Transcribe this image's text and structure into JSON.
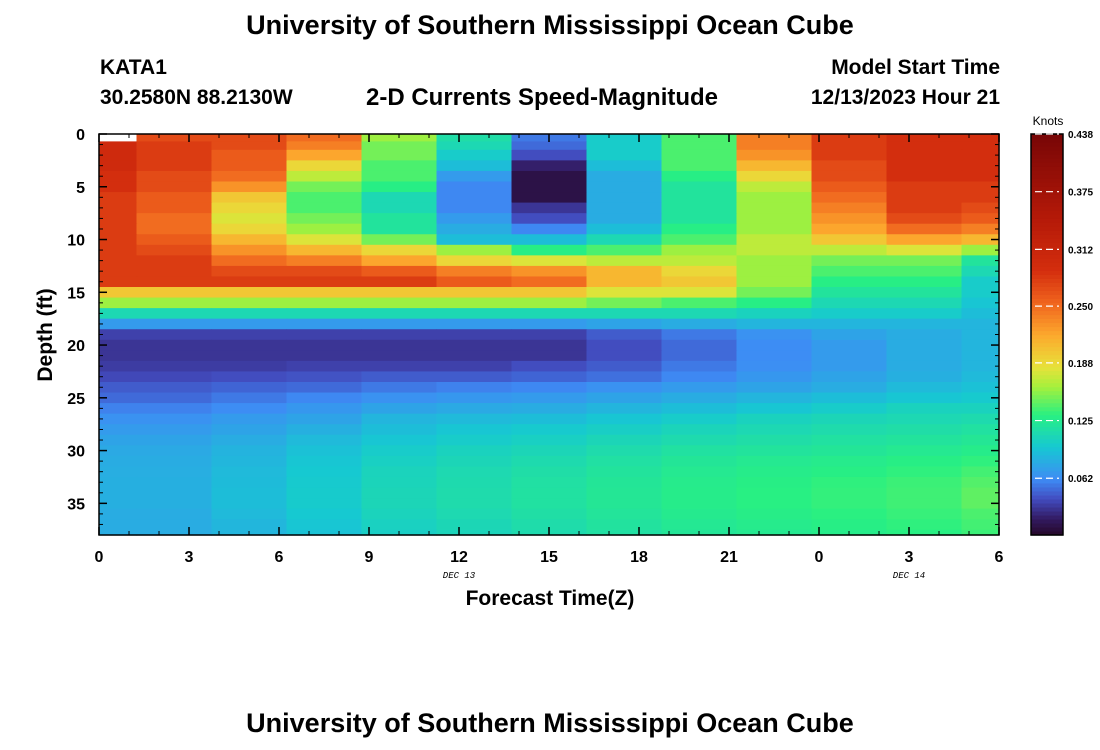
{
  "header": {
    "title": "University of Southern Mississippi Ocean Cube",
    "station_id": "KATA1",
    "station_coords": "30.2580N  88.2130W",
    "plot_title": "2-D Currents Speed-Magnitude",
    "start_label": "Model Start Time",
    "start_value": "12/13/2023 Hour 21"
  },
  "footer": {
    "title": "University of Southern Mississippi Ocean Cube"
  },
  "chart_data": {
    "type": "heatmap",
    "title": "2-D Currents Speed-Magnitude",
    "xlabel": "Forecast Time(Z)",
    "ylabel": "Depth (ft)",
    "x_tick_labels": [
      "0",
      "3",
      "6",
      "9",
      "12",
      "15",
      "18",
      "21",
      "0",
      "3",
      "6"
    ],
    "x_date_labels": [
      {
        "at_hour": 12,
        "text": "DEC 13"
      },
      {
        "at_hour": 27,
        "text": "DEC 14"
      }
    ],
    "xlim": [
      0,
      30
    ],
    "ylim": [
      0,
      38
    ],
    "y_ticks": [
      0,
      5,
      10,
      15,
      20,
      25,
      30,
      35
    ],
    "colorbar": {
      "unit": "Knots",
      "range": [
        0,
        0.438
      ],
      "tick_labels": [
        "0.438",
        "0.375",
        "0.312",
        "0.250",
        "0.188",
        "0.125",
        "0.062"
      ],
      "tick_values": [
        0.438,
        0.375,
        0.312,
        0.25,
        0.188,
        0.125,
        0.062
      ]
    },
    "times": [
      0,
      2.5,
      5,
      7.5,
      10,
      12.5,
      15,
      17.5,
      20,
      22.5,
      25,
      27.5,
      30
    ],
    "depth_edges": [
      0,
      0.7,
      1.5,
      2.5,
      3.5,
      4.5,
      5.5,
      6.5,
      7.5,
      8.5,
      9.5,
      10.5,
      11.5,
      12.5,
      13.5,
      14.5,
      15.5,
      16.5,
      17.5,
      18.5,
      19.5,
      20.5,
      21.5,
      22.5,
      23.5,
      24.5,
      25.5,
      26.5,
      27.5,
      28.5,
      29.5,
      30.5,
      31.5,
      32.5,
      33.5,
      34.5,
      35.5,
      36.5,
      37.5,
      38
    ],
    "speed_knots": [
      [
        null,
        0.27,
        0.27,
        0.25,
        0.16,
        0.115,
        0.055,
        0.1,
        0.14,
        0.24,
        0.28,
        0.29,
        0.29
      ],
      [
        0.3,
        0.28,
        0.27,
        0.24,
        0.15,
        0.11,
        0.05,
        0.1,
        0.14,
        0.24,
        0.28,
        0.29,
        0.29
      ],
      [
        0.3,
        0.28,
        0.26,
        0.22,
        0.15,
        0.1,
        0.04,
        0.1,
        0.14,
        0.23,
        0.28,
        0.29,
        0.29
      ],
      [
        0.3,
        0.28,
        0.26,
        0.19,
        0.14,
        0.09,
        0.02,
        0.09,
        0.14,
        0.21,
        0.27,
        0.29,
        0.29
      ],
      [
        0.29,
        0.27,
        0.25,
        0.17,
        0.14,
        0.07,
        0.01,
        0.08,
        0.13,
        0.19,
        0.27,
        0.29,
        0.29
      ],
      [
        0.29,
        0.27,
        0.23,
        0.15,
        0.13,
        0.06,
        0.01,
        0.08,
        0.12,
        0.17,
        0.26,
        0.28,
        0.28
      ],
      [
        0.28,
        0.26,
        0.2,
        0.14,
        0.11,
        0.06,
        0.01,
        0.08,
        0.12,
        0.16,
        0.25,
        0.28,
        0.28
      ],
      [
        0.28,
        0.26,
        0.19,
        0.14,
        0.11,
        0.06,
        0.03,
        0.08,
        0.12,
        0.16,
        0.24,
        0.28,
        0.27
      ],
      [
        0.28,
        0.25,
        0.18,
        0.15,
        0.12,
        0.07,
        0.04,
        0.08,
        0.12,
        0.16,
        0.23,
        0.27,
        0.26
      ],
      [
        0.28,
        0.25,
        0.19,
        0.16,
        0.12,
        0.08,
        0.06,
        0.09,
        0.13,
        0.16,
        0.22,
        0.25,
        0.24
      ],
      [
        0.28,
        0.26,
        0.21,
        0.18,
        0.15,
        0.09,
        0.09,
        0.11,
        0.14,
        0.17,
        0.2,
        0.22,
        0.21
      ],
      [
        0.28,
        0.27,
        0.23,
        0.21,
        0.19,
        0.16,
        0.13,
        0.14,
        0.16,
        0.17,
        0.17,
        0.18,
        0.16
      ],
      [
        0.28,
        0.28,
        0.25,
        0.24,
        0.22,
        0.19,
        0.18,
        0.17,
        0.17,
        0.16,
        0.15,
        0.15,
        0.12
      ],
      [
        0.28,
        0.28,
        0.27,
        0.27,
        0.26,
        0.24,
        0.23,
        0.21,
        0.19,
        0.16,
        0.14,
        0.14,
        0.11
      ],
      [
        0.28,
        0.28,
        0.28,
        0.28,
        0.28,
        0.26,
        0.25,
        0.21,
        0.2,
        0.16,
        0.13,
        0.13,
        0.1
      ],
      [
        0.2,
        0.2,
        0.2,
        0.2,
        0.2,
        0.2,
        0.2,
        0.18,
        0.18,
        0.15,
        0.12,
        0.12,
        0.1
      ],
      [
        0.16,
        0.16,
        0.16,
        0.16,
        0.16,
        0.16,
        0.16,
        0.15,
        0.14,
        0.13,
        0.11,
        0.11,
        0.095
      ],
      [
        0.11,
        0.11,
        0.11,
        0.11,
        0.11,
        0.11,
        0.11,
        0.11,
        0.11,
        0.105,
        0.1,
        0.1,
        0.09
      ],
      [
        0.07,
        0.07,
        0.07,
        0.07,
        0.07,
        0.07,
        0.07,
        0.075,
        0.08,
        0.085,
        0.085,
        0.085,
        0.085
      ],
      [
        0.035,
        0.035,
        0.035,
        0.035,
        0.035,
        0.035,
        0.035,
        0.045,
        0.055,
        0.065,
        0.075,
        0.08,
        0.085
      ],
      [
        0.03,
        0.03,
        0.03,
        0.03,
        0.03,
        0.03,
        0.03,
        0.04,
        0.05,
        0.062,
        0.07,
        0.08,
        0.085
      ],
      [
        0.03,
        0.03,
        0.03,
        0.03,
        0.03,
        0.03,
        0.03,
        0.04,
        0.05,
        0.062,
        0.07,
        0.08,
        0.085
      ],
      [
        0.033,
        0.033,
        0.033,
        0.035,
        0.035,
        0.035,
        0.04,
        0.045,
        0.055,
        0.063,
        0.07,
        0.08,
        0.085
      ],
      [
        0.038,
        0.038,
        0.04,
        0.042,
        0.045,
        0.045,
        0.048,
        0.052,
        0.06,
        0.068,
        0.075,
        0.082,
        0.088
      ],
      [
        0.045,
        0.045,
        0.048,
        0.05,
        0.055,
        0.058,
        0.06,
        0.065,
        0.07,
        0.075,
        0.08,
        0.088,
        0.092
      ],
      [
        0.05,
        0.05,
        0.055,
        0.06,
        0.065,
        0.068,
        0.07,
        0.075,
        0.08,
        0.085,
        0.09,
        0.095,
        0.098
      ],
      [
        0.058,
        0.058,
        0.062,
        0.068,
        0.075,
        0.078,
        0.08,
        0.085,
        0.09,
        0.095,
        0.1,
        0.105,
        0.105
      ],
      [
        0.065,
        0.065,
        0.07,
        0.075,
        0.085,
        0.088,
        0.09,
        0.095,
        0.1,
        0.105,
        0.108,
        0.11,
        0.112
      ],
      [
        0.07,
        0.07,
        0.075,
        0.082,
        0.09,
        0.095,
        0.098,
        0.102,
        0.107,
        0.11,
        0.113,
        0.115,
        0.118
      ],
      [
        0.075,
        0.075,
        0.08,
        0.088,
        0.095,
        0.1,
        0.103,
        0.108,
        0.112,
        0.115,
        0.118,
        0.12,
        0.123
      ],
      [
        0.078,
        0.078,
        0.084,
        0.092,
        0.1,
        0.105,
        0.108,
        0.113,
        0.118,
        0.12,
        0.122,
        0.125,
        0.128
      ],
      [
        0.08,
        0.08,
        0.086,
        0.095,
        0.103,
        0.108,
        0.112,
        0.117,
        0.122,
        0.125,
        0.127,
        0.13,
        0.133
      ],
      [
        0.081,
        0.081,
        0.088,
        0.097,
        0.106,
        0.111,
        0.115,
        0.12,
        0.125,
        0.128,
        0.13,
        0.133,
        0.138
      ],
      [
        0.082,
        0.082,
        0.089,
        0.098,
        0.107,
        0.112,
        0.117,
        0.122,
        0.127,
        0.13,
        0.133,
        0.136,
        0.142
      ],
      [
        0.082,
        0.082,
        0.09,
        0.099,
        0.108,
        0.113,
        0.118,
        0.123,
        0.128,
        0.131,
        0.134,
        0.137,
        0.145
      ],
      [
        0.082,
        0.082,
        0.09,
        0.099,
        0.108,
        0.113,
        0.118,
        0.123,
        0.128,
        0.131,
        0.134,
        0.137,
        0.145
      ],
      [
        0.08,
        0.08,
        0.088,
        0.097,
        0.106,
        0.111,
        0.116,
        0.121,
        0.126,
        0.129,
        0.132,
        0.135,
        0.14
      ],
      [
        0.08,
        0.08,
        0.086,
        0.095,
        0.104,
        0.109,
        0.114,
        0.119,
        0.124,
        0.127,
        0.13,
        0.133,
        0.138
      ],
      [
        0.08,
        0.08,
        0.085,
        0.093,
        0.102,
        0.107,
        0.112,
        0.117,
        0.122,
        0.125,
        0.128,
        0.131,
        0.136
      ]
    ]
  }
}
